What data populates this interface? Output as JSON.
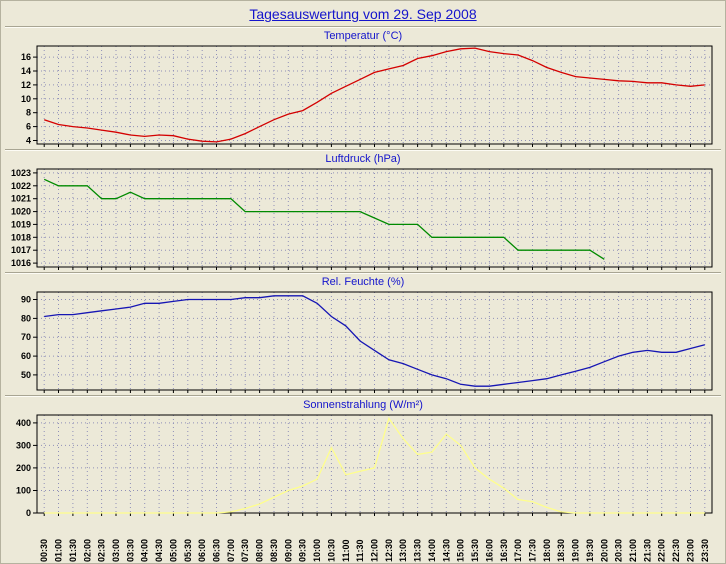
{
  "page": {
    "title": "Tagesauswertung vom 29. Sep 2008"
  },
  "colors": {
    "background": "#ece9d8",
    "title": "#1414cc",
    "grid": "#9090b8",
    "axis": "#000000",
    "temperature_line": "#d40000",
    "pressure_line": "#008a00",
    "humidity_line": "#1616b4",
    "radiation_line": "#ffff8c"
  },
  "x_axis": {
    "labels": [
      "00:30",
      "01:00",
      "01:30",
      "02:00",
      "02:30",
      "03:00",
      "03:30",
      "04:00",
      "04:30",
      "05:00",
      "05:30",
      "06:00",
      "06:30",
      "07:00",
      "07:30",
      "08:00",
      "08:30",
      "09:00",
      "09:30",
      "10:00",
      "10:30",
      "11:00",
      "11:30",
      "12:00",
      "12:30",
      "13:00",
      "13:30",
      "14:00",
      "14:30",
      "15:00",
      "15:30",
      "16:00",
      "16:30",
      "17:00",
      "17:30",
      "18:00",
      "18:30",
      "19:00",
      "19:30",
      "20:00",
      "20:30",
      "21:00",
      "21:30",
      "22:00",
      "22:30",
      "23:00",
      "23:30"
    ]
  },
  "chart_data": [
    {
      "type": "line",
      "name": "temperatur",
      "title": "Temperatur (°C)",
      "color": "#d40000",
      "ylim": [
        3.5,
        17.6
      ],
      "yticks": [
        4,
        6,
        8,
        10,
        12,
        14,
        16
      ],
      "grid": true,
      "values": [
        7.0,
        6.3,
        6.0,
        5.8,
        5.5,
        5.2,
        4.8,
        4.6,
        4.8,
        4.7,
        4.2,
        3.9,
        3.8,
        4.2,
        5.0,
        6.0,
        7.0,
        7.8,
        8.3,
        9.5,
        10.8,
        11.8,
        12.8,
        13.8,
        14.3,
        14.8,
        15.8,
        16.2,
        16.8,
        17.2,
        17.3,
        16.8,
        16.5,
        16.3,
        15.5,
        14.5,
        13.8,
        13.2,
        13.0,
        12.8,
        12.6,
        12.5,
        12.3,
        12.3,
        12.0,
        11.8,
        12.0
      ]
    },
    {
      "type": "line",
      "name": "luftdruck",
      "title": "Luftdruck (hPa)",
      "color": "#008a00",
      "ylim": [
        1015.7,
        1023.3
      ],
      "yticks": [
        1016,
        1017,
        1018,
        1019,
        1020,
        1021,
        1022,
        1023
      ],
      "grid": true,
      "values": [
        1022.5,
        1022,
        1022,
        1022,
        1021,
        1021,
        1021.5,
        1021,
        1021,
        1021,
        1021,
        1021,
        1021,
        1021,
        1020,
        1020,
        1020,
        1020,
        1020,
        1020,
        1020,
        1020,
        1020,
        1019.5,
        1019,
        1019,
        1019,
        1018,
        1018,
        1018,
        1018,
        1018,
        1018,
        1017,
        1017,
        1017,
        1017,
        1017,
        1017,
        1016.3,
        null,
        null,
        null,
        null,
        null,
        null,
        null
      ]
    },
    {
      "type": "line",
      "name": "rel-feuchte",
      "title": "Rel. Feuchte (%)",
      "color": "#1616b4",
      "ylim": [
        42,
        94
      ],
      "yticks": [
        50,
        60,
        70,
        80,
        90
      ],
      "grid": true,
      "values": [
        81,
        82,
        82,
        83,
        84,
        85,
        86,
        88,
        88,
        89,
        90,
        90,
        90,
        90,
        91,
        91,
        92,
        92,
        92,
        88,
        81,
        76,
        68,
        63,
        58,
        56,
        53,
        50,
        48,
        45,
        44,
        44,
        45,
        46,
        47,
        48,
        50,
        52,
        54,
        57,
        60,
        62,
        63,
        62,
        62,
        64,
        66
      ]
    },
    {
      "type": "line",
      "name": "sonnenstrahlung",
      "title": "Sonnenstrahlung (W/m²)",
      "color": "#ffff8c",
      "ylim": [
        0,
        435
      ],
      "yticks": [
        0,
        100,
        200,
        300,
        400
      ],
      "grid": true,
      "values": [
        0,
        0,
        0,
        0,
        0,
        0,
        0,
        0,
        0,
        0,
        0,
        0,
        0,
        5,
        20,
        40,
        70,
        100,
        120,
        150,
        290,
        170,
        185,
        200,
        420,
        330,
        260,
        270,
        350,
        300,
        200,
        150,
        110,
        60,
        50,
        25,
        5,
        0,
        0,
        0,
        0,
        0,
        0,
        0,
        0,
        0,
        0
      ]
    }
  ]
}
